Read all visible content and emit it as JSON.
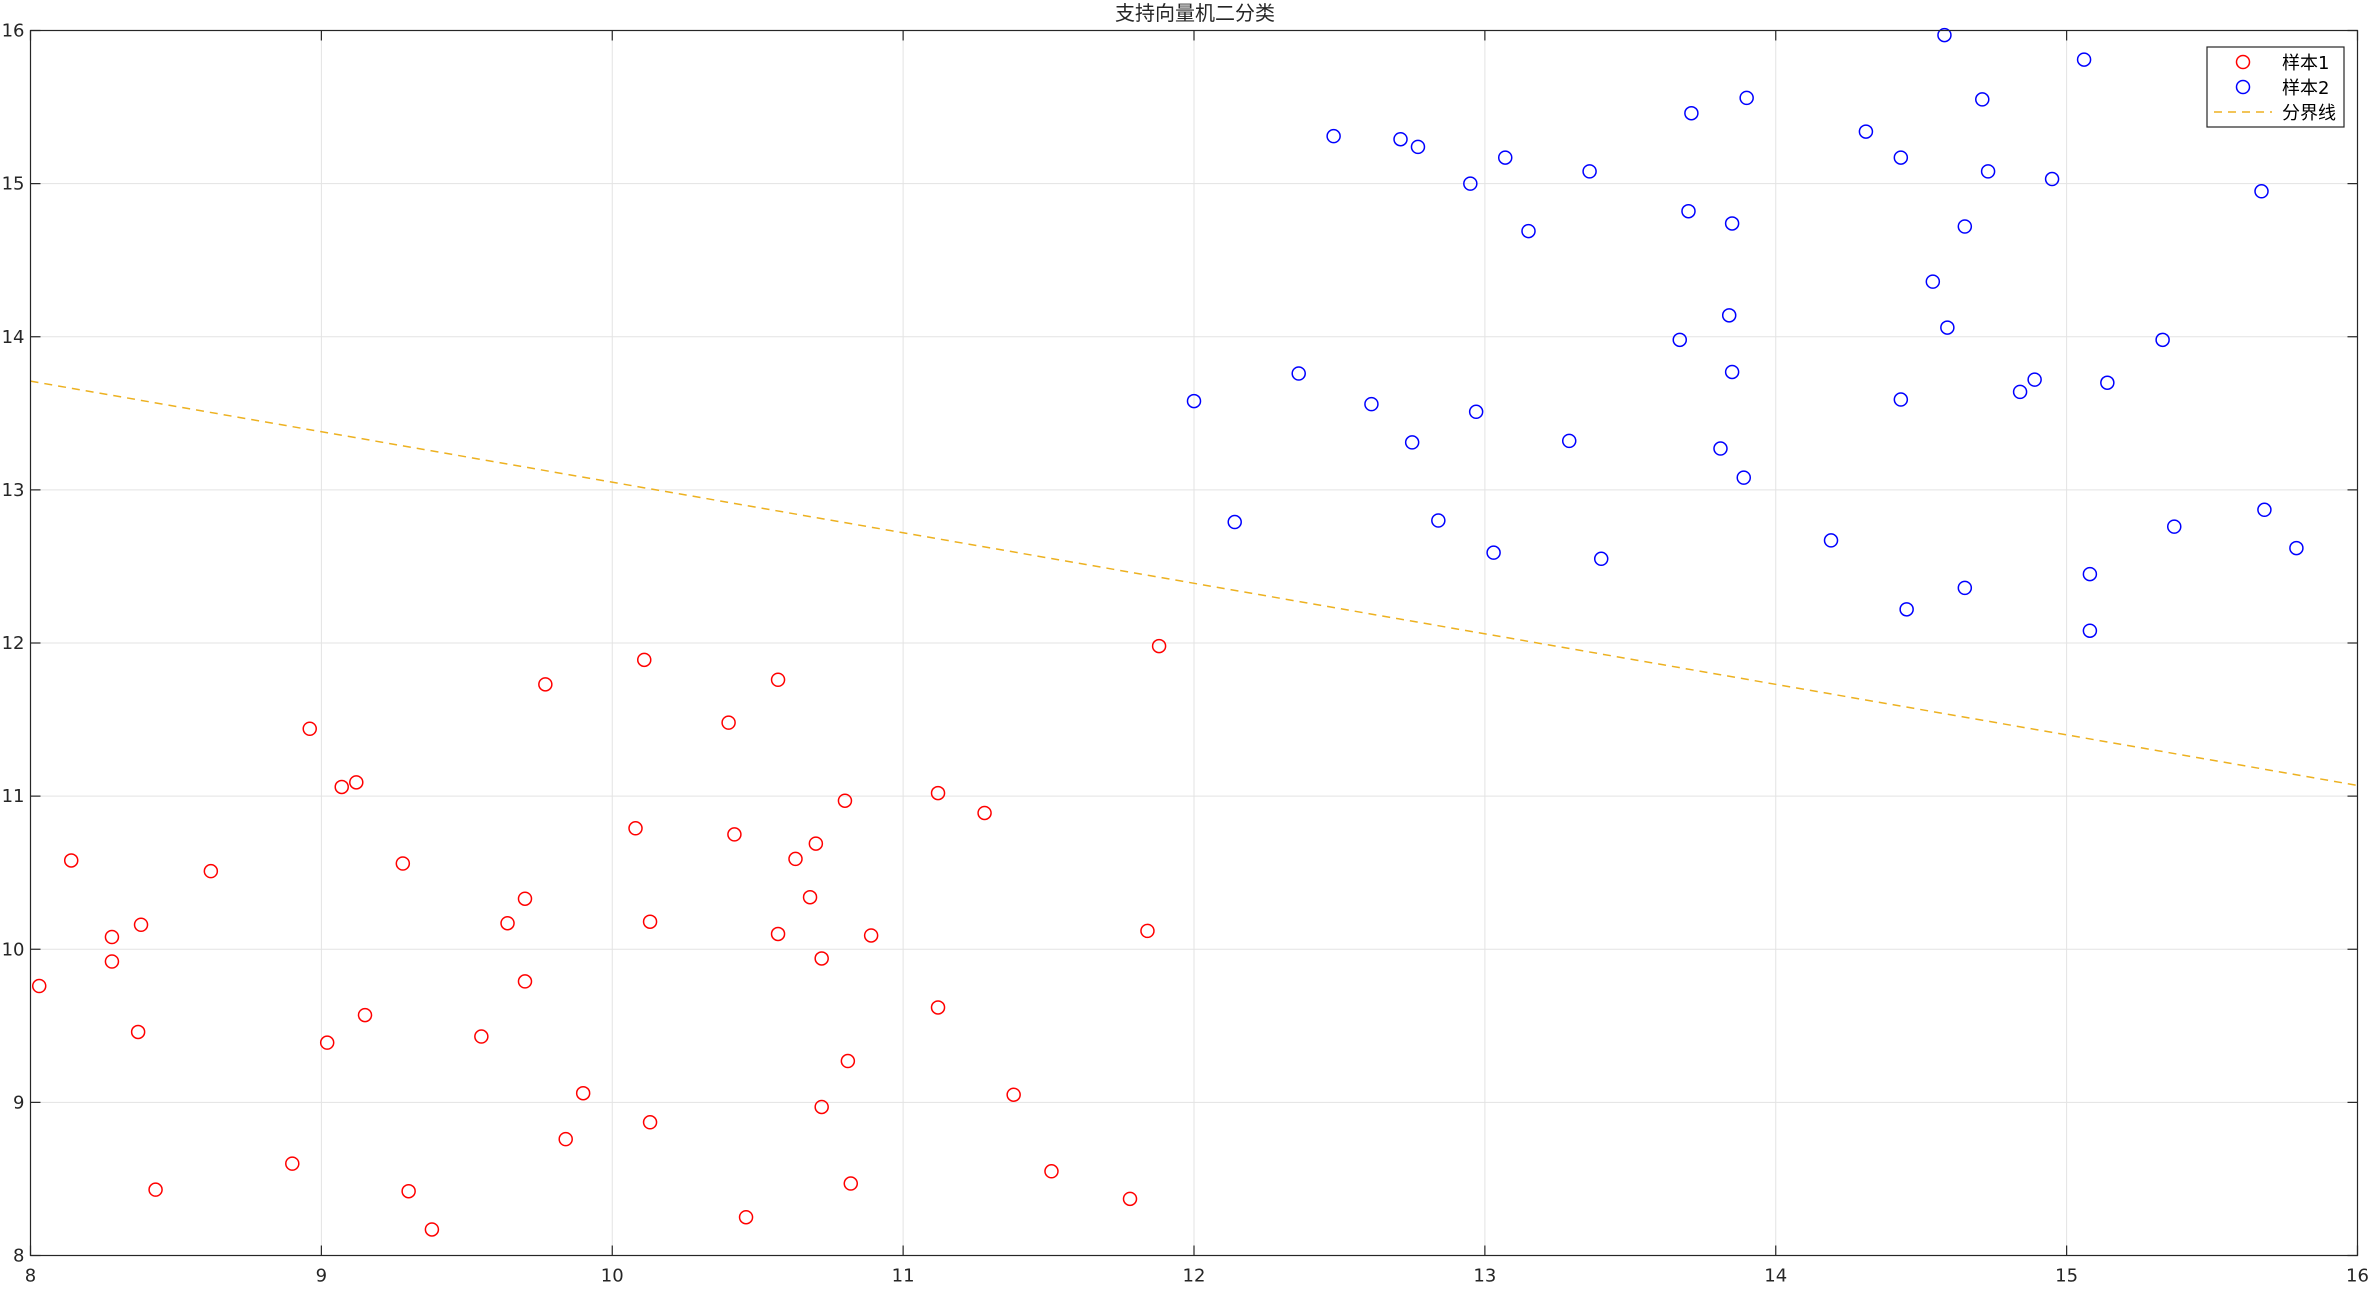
{
  "chart_data": {
    "type": "scatter",
    "title": "支持向量机二分类",
    "xlabel": "",
    "ylabel": "",
    "xlim": [
      8,
      16
    ],
    "ylim": [
      8,
      16
    ],
    "xticks": [
      8,
      9,
      10,
      11,
      12,
      13,
      14,
      15,
      16
    ],
    "yticks": [
      8,
      9,
      10,
      11,
      12,
      13,
      14,
      15,
      16
    ],
    "grid": true,
    "legend_position": "top-right",
    "series": [
      {
        "name": "样本1",
        "marker": "circle-open",
        "color": "#ff0000",
        "points": [
          [
            8.03,
            9.76
          ],
          [
            8.14,
            10.58
          ],
          [
            8.28,
            10.08
          ],
          [
            8.28,
            9.92
          ],
          [
            8.38,
            10.16
          ],
          [
            8.37,
            9.46
          ],
          [
            8.43,
            8.43
          ],
          [
            8.62,
            10.51
          ],
          [
            8.96,
            11.44
          ],
          [
            8.9,
            8.6
          ],
          [
            9.02,
            9.39
          ],
          [
            9.07,
            11.06
          ],
          [
            9.12,
            11.09
          ],
          [
            9.15,
            9.57
          ],
          [
            9.28,
            10.56
          ],
          [
            9.3,
            8.42
          ],
          [
            9.38,
            8.17
          ],
          [
            9.55,
            9.43
          ],
          [
            9.64,
            10.17
          ],
          [
            9.7,
            10.33
          ],
          [
            9.7,
            9.79
          ],
          [
            9.77,
            11.73
          ],
          [
            9.84,
            8.76
          ],
          [
            9.9,
            9.06
          ],
          [
            10.08,
            10.79
          ],
          [
            10.11,
            11.89
          ],
          [
            10.13,
            10.18
          ],
          [
            10.13,
            8.87
          ],
          [
            10.4,
            11.48
          ],
          [
            10.42,
            10.75
          ],
          [
            10.46,
            8.25
          ],
          [
            10.57,
            11.76
          ],
          [
            10.57,
            10.1
          ],
          [
            10.63,
            10.59
          ],
          [
            10.68,
            10.34
          ],
          [
            10.7,
            10.69
          ],
          [
            10.72,
            9.94
          ],
          [
            10.72,
            8.97
          ],
          [
            10.8,
            10.97
          ],
          [
            10.81,
            9.27
          ],
          [
            10.82,
            8.47
          ],
          [
            10.89,
            10.09
          ],
          [
            11.12,
            11.02
          ],
          [
            11.12,
            9.62
          ],
          [
            11.28,
            10.89
          ],
          [
            11.38,
            9.05
          ],
          [
            11.51,
            8.55
          ],
          [
            11.78,
            8.37
          ],
          [
            11.84,
            10.12
          ],
          [
            11.88,
            11.98
          ]
        ]
      },
      {
        "name": "样本2",
        "marker": "circle-open",
        "color": "#0000ff",
        "points": [
          [
            12.0,
            13.58
          ],
          [
            12.14,
            12.79
          ],
          [
            12.36,
            13.76
          ],
          [
            12.48,
            15.31
          ],
          [
            12.61,
            13.56
          ],
          [
            12.71,
            15.29
          ],
          [
            12.75,
            13.31
          ],
          [
            12.77,
            15.24
          ],
          [
            12.84,
            12.8
          ],
          [
            12.95,
            15.0
          ],
          [
            12.97,
            13.51
          ],
          [
            13.03,
            12.59
          ],
          [
            13.07,
            15.17
          ],
          [
            13.15,
            14.69
          ],
          [
            13.29,
            13.32
          ],
          [
            13.36,
            15.08
          ],
          [
            13.4,
            12.55
          ],
          [
            13.67,
            13.98
          ],
          [
            13.7,
            14.82
          ],
          [
            13.71,
            15.46
          ],
          [
            13.81,
            13.27
          ],
          [
            13.84,
            14.14
          ],
          [
            13.85,
            13.77
          ],
          [
            13.85,
            14.74
          ],
          [
            13.89,
            13.08
          ],
          [
            13.9,
            15.56
          ],
          [
            14.19,
            12.67
          ],
          [
            14.31,
            15.34
          ],
          [
            14.43,
            15.17
          ],
          [
            14.43,
            13.59
          ],
          [
            14.45,
            12.22
          ],
          [
            14.54,
            14.36
          ],
          [
            14.58,
            15.97
          ],
          [
            14.59,
            14.06
          ],
          [
            14.65,
            12.36
          ],
          [
            14.65,
            14.72
          ],
          [
            14.71,
            15.55
          ],
          [
            14.73,
            15.08
          ],
          [
            14.84,
            13.64
          ],
          [
            14.89,
            13.72
          ],
          [
            14.95,
            15.03
          ],
          [
            15.06,
            15.81
          ],
          [
            15.08,
            12.45
          ],
          [
            15.08,
            12.08
          ],
          [
            15.14,
            13.7
          ],
          [
            15.33,
            13.98
          ],
          [
            15.37,
            12.76
          ],
          [
            15.67,
            14.95
          ],
          [
            15.68,
            12.87
          ],
          [
            15.79,
            12.62
          ]
        ]
      },
      {
        "name": "分界线",
        "type": "line",
        "style": "dashed",
        "color": "#edb120",
        "points": [
          [
            8,
            13.71
          ],
          [
            16,
            11.07
          ]
        ]
      }
    ]
  }
}
